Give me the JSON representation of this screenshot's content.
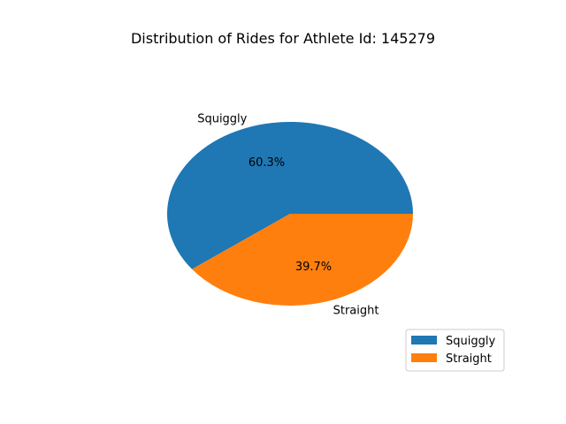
{
  "chart_data": {
    "type": "pie",
    "title": "Distribution of Rides for Athlete Id: 145279",
    "slices": [
      {
        "label": "Squiggly",
        "value": 60.3,
        "pct_label": "60.3%",
        "color": "#1f77b4"
      },
      {
        "label": "Straight",
        "value": 39.7,
        "pct_label": "39.7%",
        "color": "#ff7f0e"
      }
    ],
    "legend": {
      "placement": "lower-right",
      "entries": [
        "Squiggly",
        "Straight"
      ]
    }
  }
}
